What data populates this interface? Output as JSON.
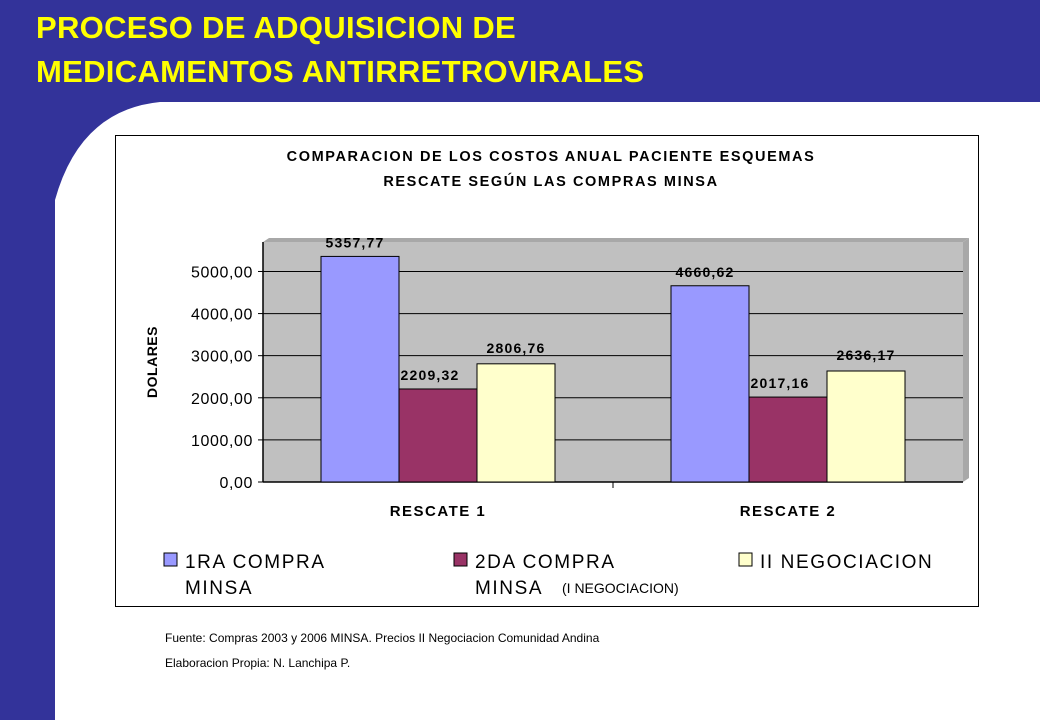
{
  "slide": {
    "title_line1": "PROCESO DE ADQUISICION DE",
    "title_line2": "MEDICAMENTOS ANTIRRETROVIRALES",
    "source": "Fuente: Compras 2003 y 2006 MINSA. Precios II Negociacion Comunidad Andina",
    "credit": "Elaboracion Propia: N. Lanchipa P.",
    "overlay_note": "(I NEGOCIACION)"
  },
  "colors": {
    "slide_blue": "#33339a",
    "title_yellow": "#ffff00",
    "plot_bg": "#c0c0c0"
  },
  "chart_data": {
    "type": "bar",
    "title_line1": "COMPARACION DE LOS COSTOS ANUAL PACIENTE ESQUEMAS",
    "title_line2": "RESCATE SEGÚN LAS COMPRAS MINSA",
    "ylabel": "DOLARES",
    "xlabel": "",
    "categories": [
      "RESCATE 1",
      "RESCATE 2"
    ],
    "ylim": [
      0,
      5700
    ],
    "yticks": [
      0,
      1000,
      2000,
      3000,
      4000,
      5000
    ],
    "ytick_labels": [
      "0,00",
      "1000,00",
      "2000,00",
      "3000,00",
      "4000,00",
      "5000,00"
    ],
    "grid": true,
    "legend_position": "bottom",
    "series": [
      {
        "legend_line1": "1RA COMPRA",
        "legend_line2": "MINSA",
        "color": "#9999ff",
        "values": [
          5357.77,
          4660.62
        ],
        "labels": [
          "5357,77",
          "4660,62"
        ]
      },
      {
        "legend_line1": "2DA COMPRA",
        "legend_line2": "MINSA",
        "color": "#993366",
        "values": [
          2209.32,
          2017.16
        ],
        "labels": [
          "2209,32",
          "2017,16"
        ]
      },
      {
        "legend_line1": "II NEGOCIACION",
        "legend_line2": "",
        "color": "#ffffcc",
        "values": [
          2806.76,
          2636.17
        ],
        "labels": [
          "2806,76",
          "2636,17"
        ]
      }
    ]
  }
}
